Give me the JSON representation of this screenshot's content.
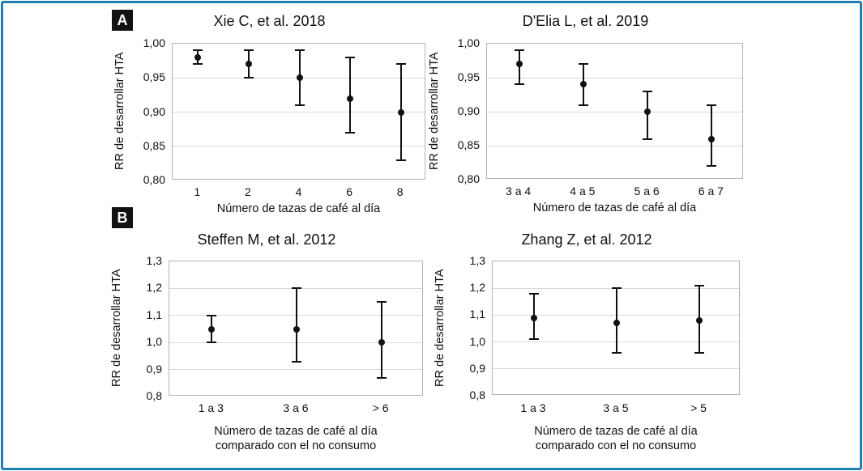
{
  "figure": {
    "colors": {
      "frame_border": "#1f81b2",
      "marker": "#111111",
      "gridline": "#d9d9d9",
      "plot_border": "#b3b3b3"
    },
    "section_labels": [
      {
        "id": "A",
        "label": "A"
      },
      {
        "id": "B",
        "label": "B"
      }
    ]
  },
  "chart_data": [
    {
      "type": "scatter",
      "section": "A",
      "title": "Xie C, et al. 2018",
      "ylabel": "RR de desarrollar HTA",
      "xlabel": "Número de tazas de café al día",
      "ylim": [
        0.8,
        1.0
      ],
      "grid": "horizontal",
      "yticks": [
        {
          "v": 1.0,
          "label": "1,00"
        },
        {
          "v": 0.95,
          "label": "0,95"
        },
        {
          "v": 0.9,
          "label": "0,90"
        },
        {
          "v": 0.85,
          "label": "0,85"
        },
        {
          "v": 0.8,
          "label": "0,80"
        }
      ],
      "categories": [
        "1",
        "2",
        "4",
        "6",
        "8"
      ],
      "points": [
        {
          "category": "1",
          "rr": 0.98,
          "ci_low": 0.97,
          "ci_high": 0.99
        },
        {
          "category": "2",
          "rr": 0.97,
          "ci_low": 0.95,
          "ci_high": 0.99
        },
        {
          "category": "4",
          "rr": 0.95,
          "ci_low": 0.91,
          "ci_high": 0.99
        },
        {
          "category": "6",
          "rr": 0.92,
          "ci_low": 0.87,
          "ci_high": 0.98
        },
        {
          "category": "8",
          "rr": 0.9,
          "ci_low": 0.83,
          "ci_high": 0.97
        }
      ]
    },
    {
      "type": "scatter",
      "section": "A",
      "title": "D'Elia L, et al. 2019",
      "ylabel": "RR de desarrollar HTA",
      "xlabel": "Número de tazas de café al día",
      "ylim": [
        0.8,
        1.0
      ],
      "grid": "horizontal",
      "yticks": [
        {
          "v": 1.0,
          "label": "1,00"
        },
        {
          "v": 0.95,
          "label": "0,95"
        },
        {
          "v": 0.9,
          "label": "0,90"
        },
        {
          "v": 0.85,
          "label": "0,85"
        },
        {
          "v": 0.8,
          "label": "0,80"
        }
      ],
      "categories": [
        "3 a 4",
        "4 a 5",
        "5 a 6",
        "6 a 7"
      ],
      "points": [
        {
          "category": "3 a 4",
          "rr": 0.97,
          "ci_low": 0.94,
          "ci_high": 0.99
        },
        {
          "category": "4 a 5",
          "rr": 0.94,
          "ci_low": 0.91,
          "ci_high": 0.97
        },
        {
          "category": "5 a 6",
          "rr": 0.9,
          "ci_low": 0.86,
          "ci_high": 0.93
        },
        {
          "category": "6 a 7",
          "rr": 0.86,
          "ci_low": 0.82,
          "ci_high": 0.91
        }
      ]
    },
    {
      "type": "scatter",
      "section": "B",
      "title": "Steffen M, et al. 2012",
      "ylabel": "RR de desarrollar HTA",
      "xlabel": "Número de tazas de café al día",
      "xlabel2": "comparado con el no consumo",
      "ylim": [
        0.8,
        1.3
      ],
      "grid": "horizontal",
      "yticks": [
        {
          "v": 1.3,
          "label": "1,3"
        },
        {
          "v": 1.2,
          "label": "1,2"
        },
        {
          "v": 1.1,
          "label": "1,1"
        },
        {
          "v": 1.0,
          "label": "1,0"
        },
        {
          "v": 0.9,
          "label": "0,9"
        },
        {
          "v": 0.8,
          "label": "0,8"
        }
      ],
      "categories": [
        "1 a 3",
        "3 a 6",
        "> 6"
      ],
      "points": [
        {
          "category": "1 a 3",
          "rr": 1.05,
          "ci_low": 1.0,
          "ci_high": 1.1
        },
        {
          "category": "3 a 6",
          "rr": 1.05,
          "ci_low": 0.93,
          "ci_high": 1.2
        },
        {
          "category": "> 6",
          "rr": 1.0,
          "ci_low": 0.87,
          "ci_high": 1.15
        }
      ]
    },
    {
      "type": "scatter",
      "section": "B",
      "title": "Zhang Z, et al. 2012",
      "ylabel": "RR de desarrollar HTA",
      "xlabel": "Número de tazas de café al día",
      "xlabel2": "comparado con el no consumo",
      "ylim": [
        0.8,
        1.3
      ],
      "grid": "horizontal",
      "yticks": [
        {
          "v": 1.3,
          "label": "1,3"
        },
        {
          "v": 1.2,
          "label": "1,2"
        },
        {
          "v": 1.1,
          "label": "1,1"
        },
        {
          "v": 1.0,
          "label": "1,0"
        },
        {
          "v": 0.9,
          "label": "0,9"
        },
        {
          "v": 0.8,
          "label": "0,8"
        }
      ],
      "categories": [
        "1 a 3",
        "3 a 5",
        "> 5"
      ],
      "points": [
        {
          "category": "1 a 3",
          "rr": 1.09,
          "ci_low": 1.01,
          "ci_high": 1.18
        },
        {
          "category": "3 a 5",
          "rr": 1.07,
          "ci_low": 0.96,
          "ci_high": 1.2
        },
        {
          "category": "> 5",
          "rr": 1.08,
          "ci_low": 0.96,
          "ci_high": 1.21
        }
      ]
    }
  ]
}
